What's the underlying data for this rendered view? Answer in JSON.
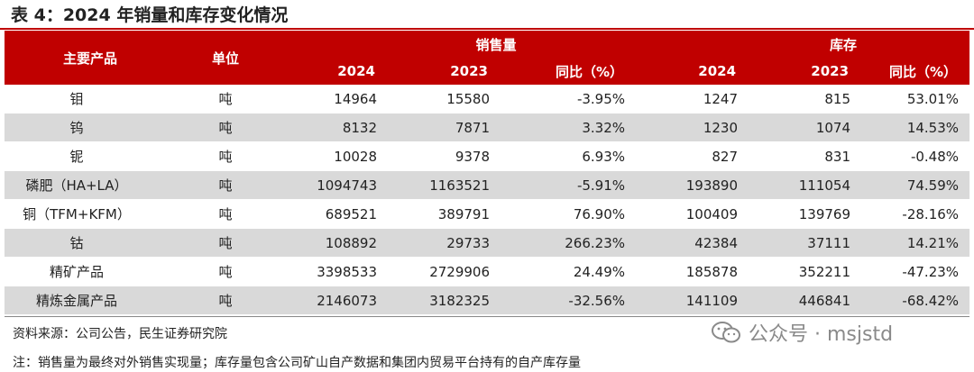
{
  "title": "表 4：2024 年销量和库存变化情况",
  "table": {
    "header": {
      "product": "主要产品",
      "unit": "单位",
      "sales_group": "销售量",
      "inventory_group": "库存",
      "sales_2024": "2024",
      "sales_2023": "2023",
      "sales_yoy": "同比（%）",
      "inv_2024": "2024",
      "inv_2023": "2023",
      "inv_yoy": "同比（%）"
    },
    "rows": [
      {
        "product": "钼",
        "unit": "吨",
        "sales_2024": "14964",
        "sales_2023": "15580",
        "sales_yoy": "-3.95%",
        "inv_2024": "1247",
        "inv_2023": "815",
        "inv_yoy": "53.01%"
      },
      {
        "product": "钨",
        "unit": "吨",
        "sales_2024": "8132",
        "sales_2023": "7871",
        "sales_yoy": "3.32%",
        "inv_2024": "1230",
        "inv_2023": "1074",
        "inv_yoy": "14.53%"
      },
      {
        "product": "铌",
        "unit": "吨",
        "sales_2024": "10028",
        "sales_2023": "9378",
        "sales_yoy": "6.93%",
        "inv_2024": "827",
        "inv_2023": "831",
        "inv_yoy": "-0.48%"
      },
      {
        "product": "磷肥（HA+LA）",
        "unit": "吨",
        "sales_2024": "1094743",
        "sales_2023": "1163521",
        "sales_yoy": "-5.91%",
        "inv_2024": "193890",
        "inv_2023": "111054",
        "inv_yoy": "74.59%"
      },
      {
        "product": "铜（TFM+KFM）",
        "unit": "吨",
        "sales_2024": "689521",
        "sales_2023": "389791",
        "sales_yoy": "76.90%",
        "inv_2024": "100409",
        "inv_2023": "139769",
        "inv_yoy": "-28.16%"
      },
      {
        "product": "钴",
        "unit": "吨",
        "sales_2024": "108892",
        "sales_2023": "29733",
        "sales_yoy": "266.23%",
        "inv_2024": "42384",
        "inv_2023": "37111",
        "inv_yoy": "14.21%"
      },
      {
        "product": "精矿产品",
        "unit": "吨",
        "sales_2024": "3398533",
        "sales_2023": "2729906",
        "sales_yoy": "24.49%",
        "inv_2024": "185878",
        "inv_2023": "352211",
        "inv_yoy": "-47.23%"
      },
      {
        "product": "精炼金属产品",
        "unit": "吨",
        "sales_2024": "2146073",
        "sales_2023": "3182325",
        "sales_yoy": "-32.56%",
        "inv_2024": "141109",
        "inv_2023": "446841",
        "inv_yoy": "-68.42%"
      }
    ]
  },
  "source_note": "资料来源：公司公告，民生证券研究院",
  "footnote": "注：销售量为最终对外销售实现量；库存量包含公司矿山自产数据和集团内贸易平台持有的自产库存量",
  "watermark": {
    "text": "公众号 · msjstd",
    "icon": "wechat-icon"
  },
  "colors": {
    "header_bg": "#c00000",
    "header_text": "#ffffff",
    "alt_row_bg": "#d9d9d9"
  }
}
